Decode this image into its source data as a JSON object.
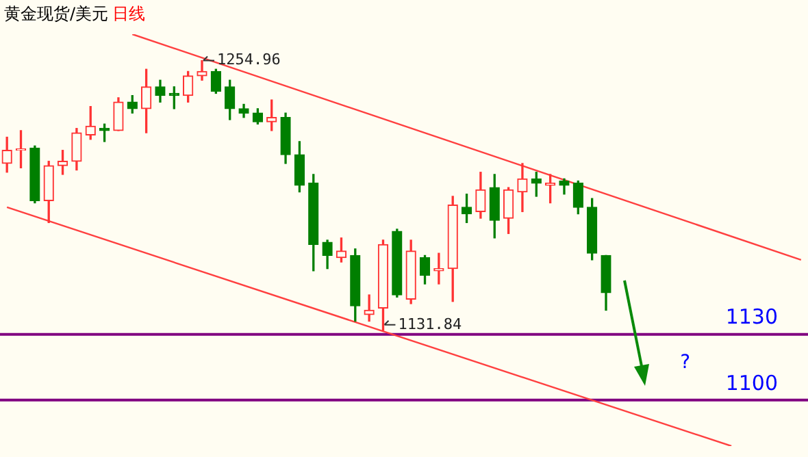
{
  "chart_data": {
    "type": "candlestick",
    "title": "黄金现货/美元",
    "subtitle": "日线",
    "categories": [
      null,
      null,
      null,
      null,
      null,
      null,
      null,
      null,
      null,
      null,
      null,
      null,
      null,
      null,
      null,
      null,
      null,
      null,
      null,
      null,
      null,
      null,
      null,
      null,
      null,
      null,
      null,
      null,
      null,
      null,
      null,
      null,
      null,
      null,
      null,
      null,
      null,
      null,
      null,
      null,
      null,
      null,
      null,
      null,
      null,
      null,
      null,
      null,
      null,
      null,
      null,
      null,
      null,
      null,
      null,
      null,
      null,
      null
    ],
    "ohlc": [
      [
        1208,
        1220,
        1204,
        1214
      ],
      [
        1214,
        1223,
        1206,
        1214
      ],
      [
        1215,
        1216,
        1190,
        1191
      ],
      [
        1191,
        1209,
        1181,
        1207
      ],
      [
        1207,
        1214,
        1203,
        1209
      ],
      [
        1209,
        1224,
        1205,
        1222
      ],
      [
        1221,
        1234,
        1219,
        1225
      ],
      [
        1224,
        1226,
        1218,
        1223
      ],
      [
        1223,
        1238,
        1223,
        1236
      ],
      [
        1236,
        1239,
        1231,
        1233
      ],
      [
        1233,
        1251,
        1222,
        1243
      ],
      [
        1243,
        1246,
        1236,
        1239
      ],
      [
        1240,
        1243,
        1233,
        1239
      ],
      [
        1239,
        1250,
        1236,
        1248
      ],
      [
        1248,
        1254.96,
        1246,
        1250
      ],
      [
        1250,
        1251,
        1240,
        1241
      ],
      [
        1243,
        1246,
        1228,
        1233
      ],
      [
        1233,
        1235,
        1229,
        1231
      ],
      [
        1231,
        1233,
        1226,
        1227
      ],
      [
        1227,
        1237,
        1223,
        1229
      ],
      [
        1229,
        1231,
        1208,
        1212
      ],
      [
        1212,
        1218,
        1195,
        1198
      ],
      [
        1199,
        1203,
        1159,
        1171
      ],
      [
        1172,
        1173,
        1160,
        1166
      ],
      [
        1165,
        1174,
        1163,
        1168
      ],
      [
        1166,
        1169,
        1136,
        1143
      ],
      [
        1139,
        1148,
        1136,
        1141
      ],
      [
        1142,
        1173,
        1131.84,
        1171
      ],
      [
        1177,
        1178,
        1147,
        1148
      ],
      [
        1146,
        1173,
        1144,
        1168
      ],
      [
        1165,
        1166,
        1153,
        1157
      ],
      [
        1159,
        1167,
        1153,
        1160
      ],
      [
        1160,
        1193,
        1145,
        1189
      ],
      [
        1188,
        1194,
        1181,
        1185
      ],
      [
        1186,
        1204,
        1183,
        1196
      ],
      [
        1197,
        1203,
        1174,
        1182
      ],
      [
        1183,
        1197,
        1176,
        1196
      ],
      [
        1195,
        1208,
        1186,
        1201
      ],
      [
        1201,
        1204,
        1193,
        1199
      ],
      [
        1198,
        1203,
        1190,
        1199
      ],
      [
        1200,
        1201,
        1194,
        1198
      ],
      [
        1199,
        1200,
        1185,
        1188
      ],
      [
        1188,
        1192,
        1164,
        1167
      ],
      [
        1166,
        1166,
        1141,
        1149
      ],
      null,
      null,
      null,
      null,
      null,
      null,
      null,
      null,
      null,
      null,
      null,
      null,
      null,
      null
    ],
    "colors": [
      "#ff3333",
      "#ff3333",
      "#007f00",
      "#ff3333",
      "#ff3333",
      "#ff3333",
      "#ff3333",
      "#007f00",
      "#ff3333",
      "#007f00",
      "#ff3333",
      "#007f00",
      "#007f00",
      "#ff3333",
      "#ff3333",
      "#007f00",
      "#007f00",
      "#007f00",
      "#007f00",
      "#ff3333",
      "#007f00",
      "#007f00",
      "#007f00",
      "#007f00",
      "#ff3333",
      "#007f00",
      "#ff3333",
      "#ff3333",
      "#007f00",
      "#ff3333",
      "#007f00",
      "#ff3333",
      "#ff3333",
      "#007f00",
      "#ff3333",
      "#007f00",
      "#ff3333",
      "#ff3333",
      "#007f00",
      "#ff3333",
      "#007f00",
      "#007f00",
      "#007f00",
      "#007f00",
      null,
      null,
      null,
      null,
      null,
      null,
      null,
      null,
      null,
      null,
      null,
      null,
      null,
      null
    ],
    "series": [
      {
        "type": "line",
        "color": "#ff4040",
        "values": [
          null,
          null,
          null,
          null,
          null,
          null,
          null,
          null,
          null,
          1267,
          null,
          null,
          null,
          null,
          null,
          null,
          null,
          null,
          null,
          null,
          null,
          null,
          null,
          null,
          null,
          null,
          null,
          null,
          null,
          null,
          null,
          null,
          null,
          null,
          null,
          null,
          null,
          null,
          null,
          null,
          null,
          null,
          null,
          null,
          null,
          null,
          null,
          null,
          null,
          null,
          null,
          null,
          null,
          null,
          null,
          null,
          null,
          1164
        ]
      },
      {
        "type": "line",
        "color": "#ff4040",
        "values": [
          1188,
          null,
          null,
          null,
          null,
          null,
          null,
          null,
          null,
          null,
          null,
          null,
          null,
          null,
          null,
          null,
          null,
          null,
          null,
          null,
          null,
          null,
          null,
          null,
          null,
          null,
          null,
          null,
          null,
          null,
          null,
          null,
          null,
          null,
          null,
          null,
          null,
          null,
          null,
          null,
          null,
          null,
          null,
          null,
          null,
          null,
          null,
          null,
          null,
          null,
          null,
          null,
          1079,
          null,
          null,
          null,
          null,
          null
        ]
      }
    ],
    "ref_lines": [
      {
        "axis": "y",
        "value": 1130,
        "label": "1130",
        "color": "#800080"
      },
      {
        "axis": "y",
        "value": 1100,
        "label": "1100",
        "color": "#800080"
      }
    ],
    "annotations": [
      "1254.96",
      "1131.84",
      "?"
    ],
    "tick_labels": false,
    "legend": false,
    "marker": "none"
  }
}
